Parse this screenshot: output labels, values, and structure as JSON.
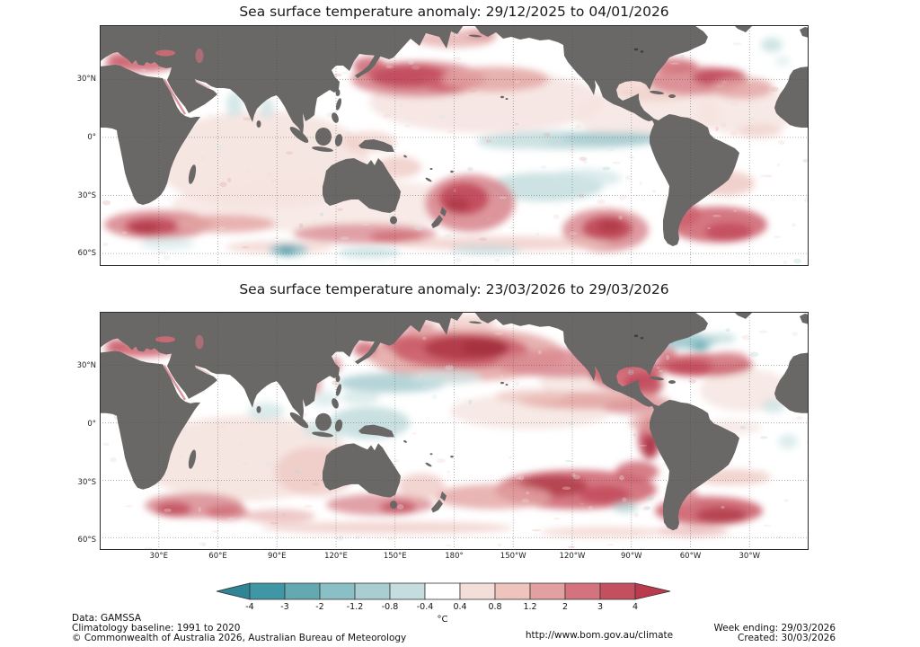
{
  "page": {
    "background": "#ffffff"
  },
  "maps": [
    {
      "id": "map-top",
      "title": "Sea surface temperature anomaly: 29/12/2025 to 04/01/2026",
      "lat_ticks": [
        "30°N",
        "0°",
        "30°S",
        "60°S"
      ]
    },
    {
      "id": "map-bottom",
      "title": "Sea surface temperature anomaly: 23/03/2026 to 29/03/2026",
      "lat_ticks": [
        "30°N",
        "0°",
        "30°S",
        "60°S"
      ],
      "lon_ticks": [
        "30°E",
        "60°E",
        "90°E",
        "120°E",
        "150°E",
        "180°",
        "150°W",
        "120°W",
        "90°W",
        "60°W",
        "30°W"
      ]
    }
  ],
  "colorbar": {
    "unit": "°C",
    "tick_labels": [
      "-4",
      "-3",
      "-2",
      "-1.2",
      "-0.8",
      "-0.4",
      "0.4",
      "0.8",
      "1.2",
      "2",
      "3",
      "4"
    ],
    "segment_colors": [
      "#3f96a5",
      "#64a9b2",
      "#8abfc5",
      "#a9cdd1",
      "#c6dde0",
      "#ffffff",
      "#f4ded9",
      "#eec4bd",
      "#e3a0a0",
      "#d4737d",
      "#c44f5e"
    ],
    "arrow_left_color": "#2f8495",
    "arrow_right_color": "#bc3a4d"
  },
  "map_style": {
    "land_color": "#6a6767",
    "ocean_color": "#ffffff",
    "grid_color": "#4a4a4a",
    "frame_color": "#2b2b2b"
  },
  "footer": {
    "data_source": "Data: GAMSSA",
    "baseline": "Climatology baseline: 1991 to 2020",
    "copyright": "© Commonwealth of Australia 2026, Australian Bureau of Meteorology",
    "url": "http://www.bom.gov.au/climate",
    "week_ending": "Week ending: 29/03/2026",
    "created": "Created: 30/03/2026"
  }
}
